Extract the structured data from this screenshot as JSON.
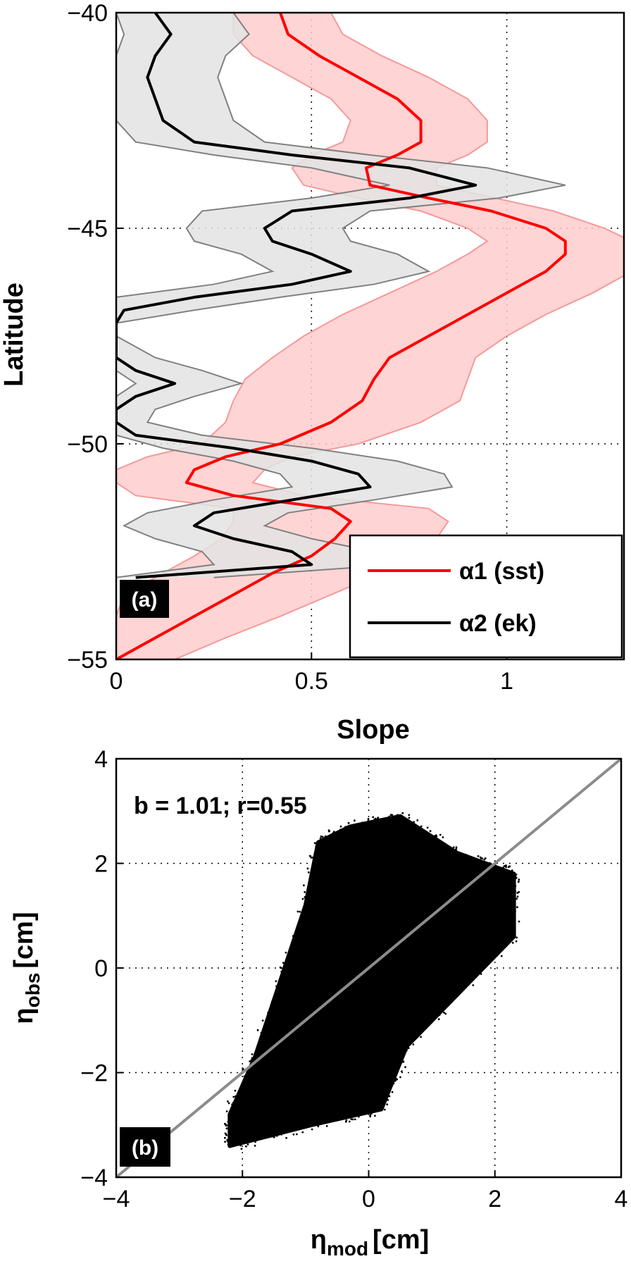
{
  "chart_data": [
    {
      "type": "line",
      "panel_label": "(a)",
      "xlabel": "Slope",
      "ylabel": "Latitude",
      "xlim": [
        0,
        1.3
      ],
      "ylim": [
        -55,
        -40
      ],
      "xticks": [
        "0",
        "0.5",
        "1"
      ],
      "yticks": [
        "-55",
        "-50",
        "-45",
        "-40"
      ],
      "grid": true,
      "legend_position": "bottom-right",
      "series": [
        {
          "name": "α1 (sst)",
          "color": "#ff0000",
          "band_color": "#ffcccc",
          "band_edge_color": "#f49a9a",
          "lat": [
            -40,
            -40.5,
            -41,
            -41.5,
            -42,
            -42.5,
            -43,
            -43.3,
            -43.6,
            -44,
            -44.3,
            -44.6,
            -45,
            -45.3,
            -45.6,
            -46,
            -46.5,
            -47,
            -47.5,
            -48,
            -48.5,
            -49,
            -49.5,
            -50,
            -50.3,
            -50.6,
            -50.9,
            -51.2,
            -51.5,
            -51.8,
            -52.2,
            -52.6,
            -53,
            -53.5,
            -54,
            -54.5,
            -55
          ],
          "mean": [
            0.42,
            0.44,
            0.52,
            0.62,
            0.72,
            0.78,
            0.78,
            0.72,
            0.64,
            0.65,
            0.8,
            0.96,
            1.1,
            1.15,
            1.15,
            1.1,
            1.0,
            0.9,
            0.8,
            0.7,
            0.66,
            0.63,
            0.55,
            0.42,
            0.28,
            0.2,
            0.18,
            0.3,
            0.55,
            0.6,
            0.56,
            0.5,
            0.4,
            0.3,
            0.2,
            0.1,
            0.0
          ],
          "lower": [
            0.3,
            0.3,
            0.35,
            0.45,
            0.55,
            0.6,
            0.58,
            0.5,
            0.45,
            0.48,
            0.62,
            0.78,
            0.9,
            0.95,
            0.9,
            0.82,
            0.7,
            0.58,
            0.48,
            0.4,
            0.33,
            0.3,
            0.28,
            0.22,
            0.08,
            0.0,
            0.0,
            0.05,
            0.3,
            0.3,
            0.27,
            0.2,
            0.12,
            0.02,
            0.0,
            0.0,
            0.0
          ],
          "upper": [
            0.55,
            0.58,
            0.68,
            0.8,
            0.9,
            0.95,
            0.95,
            0.9,
            0.82,
            0.82,
            0.97,
            1.12,
            1.25,
            1.32,
            1.35,
            1.32,
            1.22,
            1.1,
            1.0,
            0.92,
            0.9,
            0.88,
            0.78,
            0.62,
            0.45,
            0.38,
            0.35,
            0.48,
            0.8,
            0.85,
            0.82,
            0.76,
            0.68,
            0.55,
            0.42,
            0.28,
            0.15
          ]
        },
        {
          "name": "α2 (ek)",
          "color": "#000000",
          "band_color": "#e3e3e3",
          "band_edge_color": "#808080",
          "lat": [
            -40,
            -40.5,
            -41,
            -41.5,
            -42,
            -42.5,
            -43,
            -43.3,
            -43.6,
            -44,
            -44.3,
            -44.6,
            -45,
            -45.3,
            -45.6,
            -46,
            -46.3,
            -46.6,
            -46.9,
            -47.2,
            -47.5,
            -48,
            -48.3,
            -48.6,
            -48.9,
            -49.2,
            -49.5,
            -49.8,
            -50.1,
            -50.4,
            -50.7,
            -51,
            -51.3,
            -51.6,
            -51.9,
            -52.2,
            -52.5,
            -52.8,
            -53.1
          ],
          "mean": [
            0.1,
            0.14,
            0.1,
            0.08,
            0.1,
            0.12,
            0.2,
            0.45,
            0.75,
            0.92,
            0.75,
            0.45,
            0.38,
            0.4,
            0.5,
            0.6,
            0.45,
            0.2,
            0.02,
            0.0,
            0.0,
            0.0,
            0.05,
            0.15,
            0.05,
            0.0,
            0.0,
            0.05,
            0.3,
            0.5,
            0.62,
            0.65,
            0.45,
            0.25,
            0.2,
            0.3,
            0.45,
            0.5,
            0.05
          ],
          "lower": [
            0.0,
            0.02,
            0.0,
            0.0,
            0.0,
            0.0,
            0.05,
            0.25,
            0.5,
            0.7,
            0.5,
            0.22,
            0.18,
            0.2,
            0.32,
            0.4,
            0.25,
            0.0,
            0.0,
            0.0,
            0.0,
            0.0,
            0.0,
            0.05,
            0.0,
            0.0,
            0.0,
            0.0,
            0.12,
            0.3,
            0.42,
            0.45,
            0.25,
            0.08,
            0.02,
            0.1,
            0.22,
            0.25,
            0.0
          ],
          "upper": [
            0.3,
            0.34,
            0.28,
            0.26,
            0.28,
            0.3,
            0.38,
            0.65,
            0.95,
            1.15,
            0.98,
            0.65,
            0.58,
            0.6,
            0.72,
            0.8,
            0.66,
            0.42,
            0.2,
            0.0,
            0.0,
            0.1,
            0.22,
            0.32,
            0.2,
            0.1,
            0.08,
            0.22,
            0.5,
            0.72,
            0.84,
            0.86,
            0.66,
            0.44,
            0.38,
            0.5,
            0.66,
            0.72,
            0.25
          ]
        }
      ]
    },
    {
      "type": "scatter",
      "panel_label": "(b)",
      "xlabel": "η",
      "xlabel_sub": "mod",
      "xlabel_unit": "[cm]",
      "ylabel": "η",
      "ylabel_sub": "obs",
      "ylabel_unit": "[cm]",
      "xlim": [
        -4,
        4
      ],
      "ylim": [
        -4,
        4
      ],
      "xticks": [
        "-4",
        "-2",
        "0",
        "2",
        "4"
      ],
      "yticks": [
        "-4",
        "-2",
        "0",
        "2",
        "4"
      ],
      "grid": true,
      "annotation": "b = 1.01; r=0.55",
      "marker_color": "#000000",
      "cloud": {
        "points": [
          [
            -2.2,
            -3.4
          ],
          [
            -0.9,
            -3.0
          ],
          [
            0.2,
            -2.7
          ],
          [
            0.6,
            -1.5
          ],
          [
            2.3,
            0.6
          ],
          [
            2.3,
            1.8
          ],
          [
            1.4,
            2.2
          ],
          [
            0.5,
            2.9
          ],
          [
            -0.3,
            2.7
          ],
          [
            -0.8,
            2.4
          ],
          [
            -1.0,
            1.2
          ],
          [
            -1.8,
            -1.7
          ],
          [
            -2.2,
            -2.8
          ]
        ]
      },
      "reference_line": {
        "x": [
          -4,
          4
        ],
        "y": [
          -4,
          4
        ],
        "color": "#8c8c8c"
      }
    }
  ]
}
